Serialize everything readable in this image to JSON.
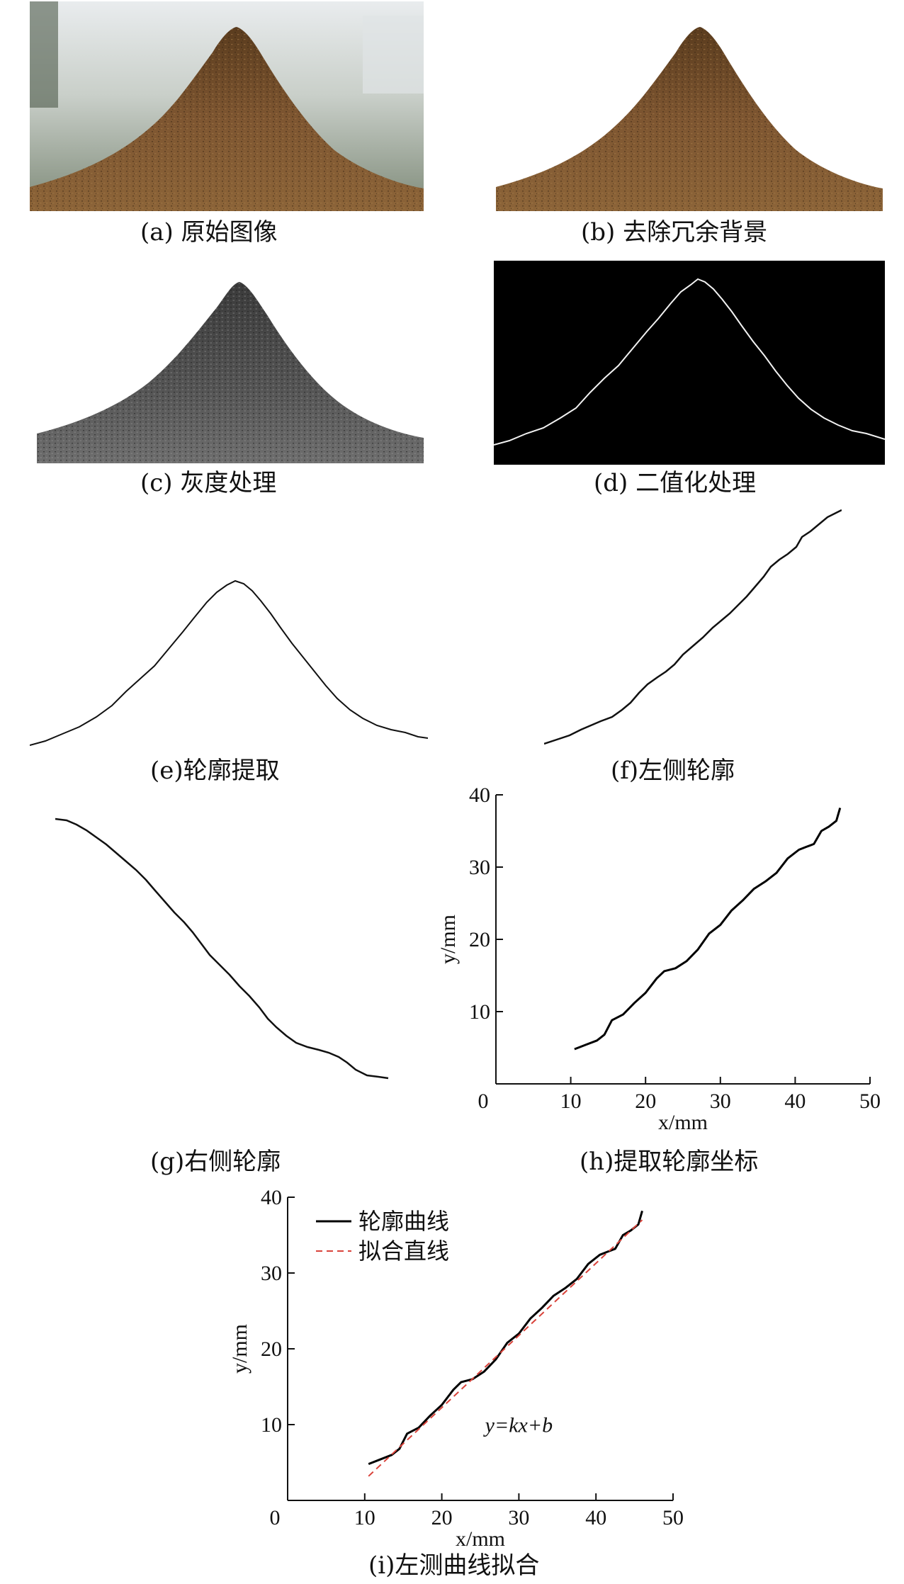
{
  "figure": {
    "panels": [
      {
        "id": "a",
        "caption": "(a) 原始图像"
      },
      {
        "id": "b",
        "caption": "(b) 去除冗余背景"
      },
      {
        "id": "c",
        "caption": "(c) 灰度处理"
      },
      {
        "id": "d",
        "caption": "(d) 二值化处理"
      },
      {
        "id": "e",
        "caption": "(e)轮廓提取"
      },
      {
        "id": "f",
        "caption": "(f)左侧轮廓"
      },
      {
        "id": "g",
        "caption": "(g)右侧轮廓"
      },
      {
        "id": "h",
        "caption": "(h)提取轮廓坐标"
      },
      {
        "id": "i",
        "caption": "(i)左测曲线拟合"
      }
    ],
    "colors": {
      "soil_light": "#8c6438",
      "soil_dark": "#3b2714",
      "gray_light": "#8a8a8a",
      "gray_dark": "#2a2a2a",
      "fit_line": "#d9433b",
      "profile": "#000000"
    }
  },
  "chart_data": [
    {
      "type": "line",
      "panel": "h",
      "xlabel": "x/mm",
      "ylabel": "y/mm",
      "xlim": [
        0,
        50
      ],
      "ylim": [
        0,
        40
      ],
      "xticks": [
        0,
        10,
        20,
        30,
        40,
        50
      ],
      "yticks": [
        10,
        20,
        30,
        40
      ],
      "grid": false,
      "series": [
        {
          "x": [
            10.5,
            12,
            13.5,
            14.5,
            15.5,
            17,
            18.5,
            20,
            21.5,
            22.5,
            24,
            25.5,
            27,
            28.5,
            30,
            31.5,
            33,
            34.5,
            36,
            37.5,
            39,
            40.5,
            41.5,
            42.5,
            43.5,
            44.5,
            45.5,
            46
          ],
          "y": [
            4.8,
            5.4,
            6.0,
            6.8,
            8.8,
            9.6,
            11.2,
            12.6,
            14.6,
            15.6,
            16.0,
            17.0,
            18.6,
            20.8,
            22.0,
            24.0,
            25.4,
            27.0,
            28.0,
            29.2,
            31.2,
            32.4,
            32.8,
            33.2,
            35.0,
            35.6,
            36.4,
            38.2
          ]
        }
      ]
    },
    {
      "type": "line",
      "panel": "i",
      "xlabel": "x/mm",
      "ylabel": "y/mm",
      "xlim": [
        0,
        50
      ],
      "ylim": [
        0,
        40
      ],
      "xticks": [
        0,
        10,
        20,
        30,
        40,
        50
      ],
      "yticks": [
        10,
        20,
        30,
        40
      ],
      "grid": false,
      "legend_position": "top-left",
      "annotation": "y=kx+b",
      "series": [
        {
          "name": "轮廓曲线",
          "style": "solid",
          "x": [
            10.5,
            12,
            13.5,
            14.5,
            15.5,
            17,
            18.5,
            20,
            21.5,
            22.5,
            24,
            25.5,
            27,
            28.5,
            30,
            31.5,
            33,
            34.5,
            36,
            37.5,
            39,
            40.5,
            41.5,
            42.5,
            43.5,
            44.5,
            45.5,
            46
          ],
          "y": [
            4.8,
            5.4,
            6.0,
            6.8,
            8.8,
            9.6,
            11.2,
            12.6,
            14.6,
            15.6,
            16.0,
            17.0,
            18.6,
            20.8,
            22.0,
            24.0,
            25.4,
            27.0,
            28.0,
            29.2,
            31.2,
            32.4,
            32.8,
            33.2,
            35.0,
            35.6,
            36.4,
            38.2
          ]
        },
        {
          "name": "拟合直线",
          "style": "dashed",
          "x": [
            10.5,
            46
          ],
          "y": [
            3.2,
            37.0
          ]
        }
      ]
    }
  ]
}
